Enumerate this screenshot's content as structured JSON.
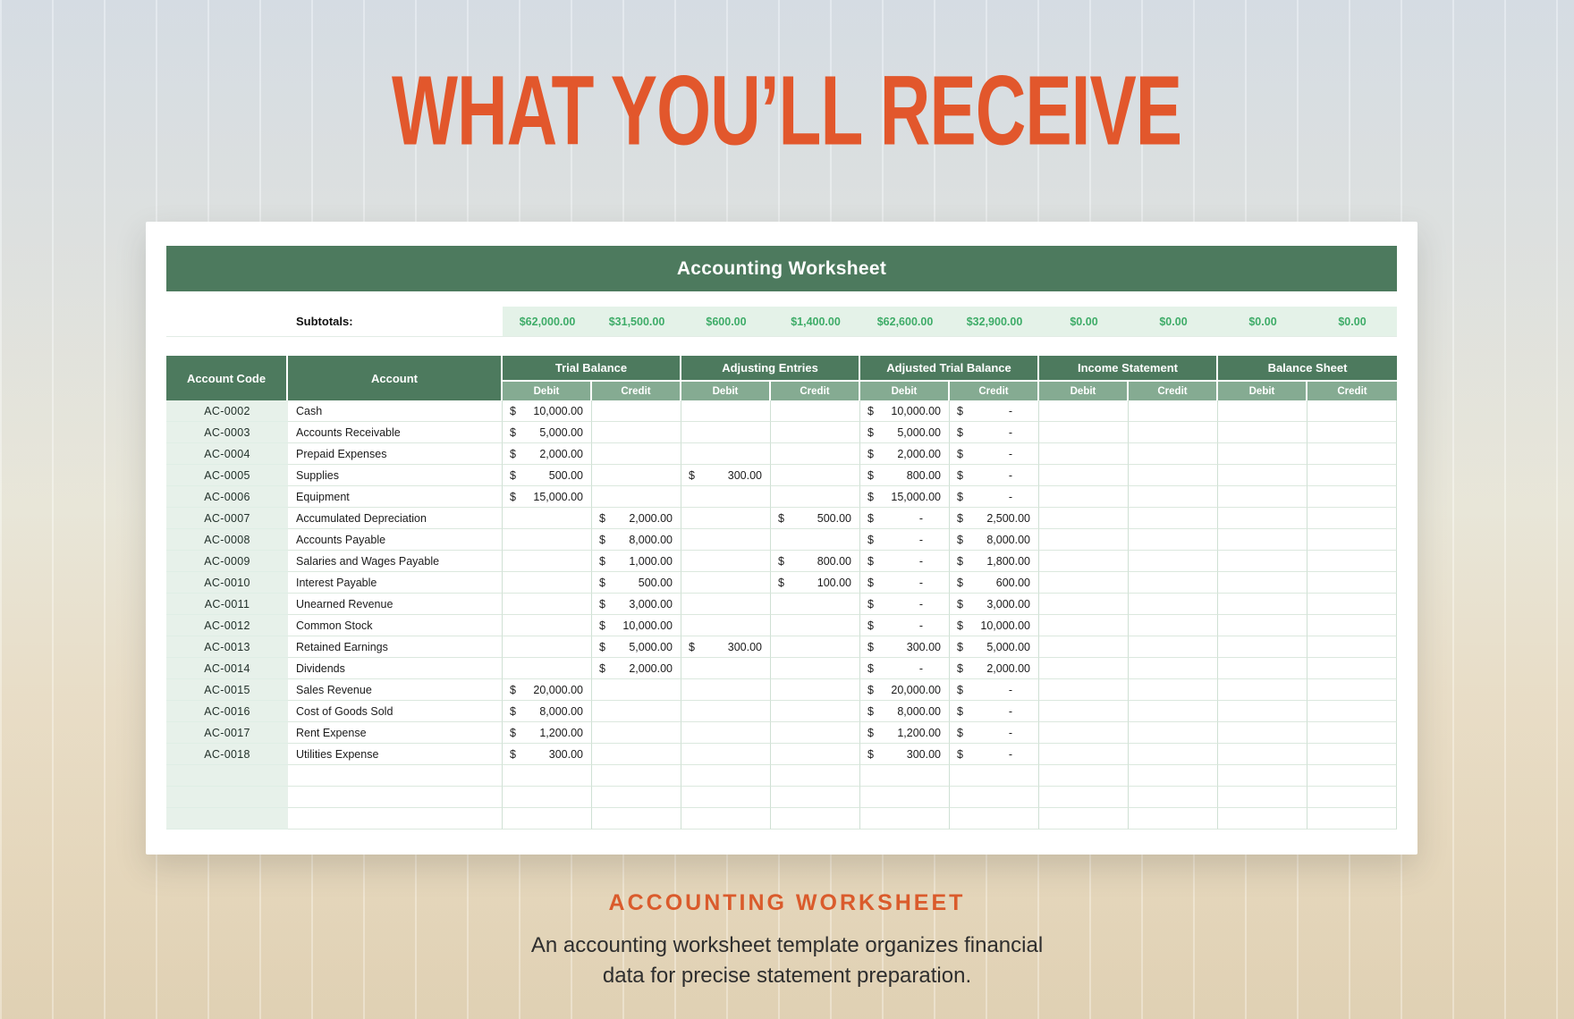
{
  "page": {
    "title": "WHAT YOU’LL RECEIVE"
  },
  "sheet": {
    "title": "Accounting Worksheet",
    "subtotals": {
      "label": "Subtotals:",
      "values": [
        "$62,000.00",
        "$31,500.00",
        "$600.00",
        "$1,400.00",
        "$62,600.00",
        "$32,900.00",
        "$0.00",
        "$0.00",
        "$0.00",
        "$0.00"
      ]
    },
    "header": {
      "account_code": "Account Code",
      "account": "Account",
      "groups": [
        "Trial Balance",
        "Adjusting Entries",
        "Adjusted Trial Balance",
        "Income Statement",
        "Balance Sheet"
      ],
      "sub_labels": [
        "Debit",
        "Credit"
      ]
    },
    "currency_symbol": "$",
    "rows": [
      {
        "code": "AC-0002",
        "account": "Cash",
        "cells": [
          "10,000.00",
          "",
          "",
          "",
          "10,000.00",
          "-",
          "",
          "",
          "",
          ""
        ]
      },
      {
        "code": "AC-0003",
        "account": "Accounts Receivable",
        "cells": [
          "5,000.00",
          "",
          "",
          "",
          "5,000.00",
          "-",
          "",
          "",
          "",
          ""
        ]
      },
      {
        "code": "AC-0004",
        "account": "Prepaid Expenses",
        "cells": [
          "2,000.00",
          "",
          "",
          "",
          "2,000.00",
          "-",
          "",
          "",
          "",
          ""
        ]
      },
      {
        "code": "AC-0005",
        "account": "Supplies",
        "cells": [
          "500.00",
          "",
          "300.00",
          "",
          "800.00",
          "-",
          "",
          "",
          "",
          ""
        ]
      },
      {
        "code": "AC-0006",
        "account": "Equipment",
        "cells": [
          "15,000.00",
          "",
          "",
          "",
          "15,000.00",
          "-",
          "",
          "",
          "",
          ""
        ]
      },
      {
        "code": "AC-0007",
        "account": "Accumulated Depreciation",
        "cells": [
          "",
          "2,000.00",
          "",
          "500.00",
          "-",
          "2,500.00",
          "",
          "",
          "",
          ""
        ]
      },
      {
        "code": "AC-0008",
        "account": "Accounts Payable",
        "cells": [
          "",
          "8,000.00",
          "",
          "",
          "-",
          "8,000.00",
          "",
          "",
          "",
          ""
        ]
      },
      {
        "code": "AC-0009",
        "account": "Salaries and Wages Payable",
        "cells": [
          "",
          "1,000.00",
          "",
          "800.00",
          "-",
          "1,800.00",
          "",
          "",
          "",
          ""
        ]
      },
      {
        "code": "AC-0010",
        "account": "Interest Payable",
        "cells": [
          "",
          "500.00",
          "",
          "100.00",
          "-",
          "600.00",
          "",
          "",
          "",
          ""
        ]
      },
      {
        "code": "AC-0011",
        "account": "Unearned Revenue",
        "cells": [
          "",
          "3,000.00",
          "",
          "",
          "-",
          "3,000.00",
          "",
          "",
          "",
          ""
        ]
      },
      {
        "code": "AC-0012",
        "account": "Common Stock",
        "cells": [
          "",
          "10,000.00",
          "",
          "",
          "-",
          "10,000.00",
          "",
          "",
          "",
          ""
        ]
      },
      {
        "code": "AC-0013",
        "account": "Retained Earnings",
        "cells": [
          "",
          "5,000.00",
          "300.00",
          "",
          "300.00",
          "5,000.00",
          "",
          "",
          "",
          ""
        ]
      },
      {
        "code": "AC-0014",
        "account": "Dividends",
        "cells": [
          "",
          "2,000.00",
          "",
          "",
          "-",
          "2,000.00",
          "",
          "",
          "",
          ""
        ]
      },
      {
        "code": "AC-0015",
        "account": "Sales Revenue",
        "cells": [
          "20,000.00",
          "",
          "",
          "",
          "20,000.00",
          "-",
          "",
          "",
          "",
          ""
        ]
      },
      {
        "code": "AC-0016",
        "account": "Cost of Goods Sold",
        "cells": [
          "8,000.00",
          "",
          "",
          "",
          "8,000.00",
          "-",
          "",
          "",
          "",
          ""
        ]
      },
      {
        "code": "AC-0017",
        "account": "Rent Expense",
        "cells": [
          "1,200.00",
          "",
          "",
          "",
          "1,200.00",
          "-",
          "",
          "",
          "",
          ""
        ]
      },
      {
        "code": "AC-0018",
        "account": "Utilities Expense",
        "cells": [
          "300.00",
          "",
          "",
          "",
          "300.00",
          "-",
          "",
          "",
          "",
          ""
        ]
      }
    ],
    "empty_row_count": 3
  },
  "footer": {
    "heading": "ACCOUNTING WORKSHEET",
    "description_line1": "An accounting worksheet template organizes financial",
    "description_line2": "data for precise statement preparation."
  },
  "colors": {
    "accent_orange": "#E2572C",
    "header_green": "#4D7A5E",
    "subheader_green": "#85AB92",
    "account_code_mint": "#E7F1EA",
    "subtotal_band": "#E4F2E8",
    "subtotal_text": "#3EAC68"
  }
}
